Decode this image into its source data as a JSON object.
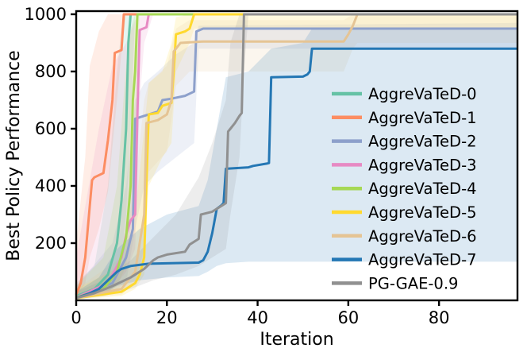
{
  "figure": {
    "background": "#ffffff",
    "frame_color": "#000000"
  },
  "chart_data": {
    "type": "line",
    "title": "",
    "xlabel": "Iteration",
    "ylabel": "Best Policy Performance",
    "xlim": [
      0,
      97.3
    ],
    "ylim": [
      0,
      1011
    ],
    "xticks": [
      0,
      20,
      40,
      60,
      80
    ],
    "yticks": [
      200,
      400,
      600,
      800,
      1000
    ],
    "grid": false,
    "legend_position": "inside-right",
    "band_opacity": 0.16,
    "series": [
      {
        "name": "AggreVaTeD-0",
        "color": "#66c2a5",
        "points": [
          [
            0,
            15
          ],
          [
            4,
            40
          ],
          [
            7,
            90
          ],
          [
            9,
            200
          ],
          [
            10,
            350
          ],
          [
            11,
            600
          ],
          [
            11.5,
            900
          ],
          [
            12,
            1000
          ],
          [
            97.3,
            1000
          ]
        ],
        "band": [
          [
            0,
            5,
            60
          ],
          [
            4,
            15,
            120
          ],
          [
            7,
            40,
            400
          ],
          [
            9,
            90,
            800
          ],
          [
            10,
            150,
            950
          ],
          [
            11,
            300,
            1000
          ],
          [
            12,
            600,
            1000
          ],
          [
            13,
            1000,
            1000
          ],
          [
            97.3,
            1000,
            1000
          ]
        ]
      },
      {
        "name": "AggreVaTeD-1",
        "color": "#fc8d62",
        "points": [
          [
            0,
            20
          ],
          [
            1,
            60
          ],
          [
            2,
            150
          ],
          [
            3,
            330
          ],
          [
            3.5,
            420
          ],
          [
            4,
            430
          ],
          [
            6,
            445
          ],
          [
            7,
            560
          ],
          [
            8,
            700
          ],
          [
            8.5,
            865
          ],
          [
            10,
            875
          ],
          [
            10.5,
            1000
          ],
          [
            97.3,
            1000
          ]
        ],
        "band": [
          [
            0,
            5,
            200
          ],
          [
            2,
            60,
            500
          ],
          [
            3,
            150,
            820
          ],
          [
            5,
            250,
            940
          ],
          [
            7,
            380,
            1000
          ],
          [
            9,
            700,
            1000
          ],
          [
            10,
            870,
            1000
          ],
          [
            11,
            1000,
            1000
          ],
          [
            97.3,
            1000,
            1000
          ]
        ]
      },
      {
        "name": "AggreVaTeD-2",
        "color": "#8da0cb",
        "points": [
          [
            0,
            10
          ],
          [
            8,
            60
          ],
          [
            11,
            150
          ],
          [
            12.5,
            250
          ],
          [
            13,
            635
          ],
          [
            15,
            645
          ],
          [
            18,
            660
          ],
          [
            19,
            700
          ],
          [
            21,
            705
          ],
          [
            24,
            715
          ],
          [
            26,
            730
          ],
          [
            26.5,
            940
          ],
          [
            28,
            950
          ],
          [
            97.3,
            950
          ]
        ],
        "band": [
          [
            0,
            5,
            50
          ],
          [
            8,
            30,
            200
          ],
          [
            11,
            60,
            400
          ],
          [
            13,
            250,
            700
          ],
          [
            15,
            400,
            760
          ],
          [
            18,
            450,
            800
          ],
          [
            22,
            500,
            860
          ],
          [
            26,
            550,
            900
          ],
          [
            27,
            880,
            960
          ],
          [
            97.3,
            880,
            970
          ]
        ]
      },
      {
        "name": "AggreVaTeD-3",
        "color": "#e78ac3",
        "points": [
          [
            0,
            10
          ],
          [
            7,
            60
          ],
          [
            10,
            150
          ],
          [
            11,
            230
          ],
          [
            12,
            280
          ],
          [
            13,
            300
          ],
          [
            13.5,
            650
          ],
          [
            14,
            945
          ],
          [
            15.5,
            955
          ],
          [
            16,
            1000
          ],
          [
            97.3,
            1000
          ]
        ],
        "band": [
          [
            0,
            5,
            150
          ],
          [
            5,
            20,
            600
          ],
          [
            8,
            40,
            820
          ],
          [
            11,
            100,
            900
          ],
          [
            13,
            180,
            980
          ],
          [
            14,
            700,
            1000
          ],
          [
            15,
            900,
            1000
          ],
          [
            16,
            950,
            1000
          ],
          [
            17,
            1000,
            1000
          ],
          [
            97.3,
            1000,
            1000
          ]
        ]
      },
      {
        "name": "AggreVaTeD-4",
        "color": "#a6d854",
        "points": [
          [
            0,
            10
          ],
          [
            6,
            40
          ],
          [
            9,
            100
          ],
          [
            11,
            220
          ],
          [
            12,
            400
          ],
          [
            12.5,
            700
          ],
          [
            13,
            800
          ],
          [
            13.5,
            1000
          ],
          [
            97.3,
            1000
          ]
        ],
        "band": [
          [
            0,
            5,
            50
          ],
          [
            6,
            20,
            150
          ],
          [
            9,
            50,
            400
          ],
          [
            11,
            120,
            820
          ],
          [
            12,
            250,
            950
          ],
          [
            13,
            500,
            1000
          ],
          [
            14,
            1000,
            1000
          ],
          [
            97.3,
            1000,
            1000
          ]
        ]
      },
      {
        "name": "AggreVaTeD-5",
        "color": "#ffd92f",
        "points": [
          [
            0,
            8
          ],
          [
            10,
            30
          ],
          [
            13,
            60
          ],
          [
            14,
            90
          ],
          [
            15,
            150
          ],
          [
            15.5,
            420
          ],
          [
            16,
            650
          ],
          [
            18,
            655
          ],
          [
            19,
            680
          ],
          [
            21,
            690
          ],
          [
            21.5,
            800
          ],
          [
            22,
            930
          ],
          [
            24,
            940
          ],
          [
            25,
            950
          ],
          [
            26,
            1000
          ],
          [
            97.3,
            1000
          ]
        ],
        "band": [
          [
            0,
            4,
            40
          ],
          [
            10,
            15,
            120
          ],
          [
            13,
            40,
            300
          ],
          [
            15,
            90,
            600
          ],
          [
            16,
            400,
            760
          ],
          [
            19,
            500,
            800
          ],
          [
            21,
            550,
            900
          ],
          [
            22,
            800,
            990
          ],
          [
            25,
            900,
            1000
          ],
          [
            26,
            950,
            1000
          ],
          [
            97.3,
            950,
            1000
          ]
        ]
      },
      {
        "name": "AggreVaTeD-6",
        "color": "#e5c494",
        "points": [
          [
            0,
            8
          ],
          [
            10,
            40
          ],
          [
            13,
            100
          ],
          [
            14,
            200
          ],
          [
            15,
            300
          ],
          [
            15.5,
            620
          ],
          [
            18,
            630
          ],
          [
            20,
            650
          ],
          [
            21,
            700
          ],
          [
            21.5,
            870
          ],
          [
            23,
            900
          ],
          [
            28,
            905
          ],
          [
            59,
            905
          ],
          [
            60,
            930
          ],
          [
            61,
            960
          ],
          [
            62,
            1000
          ],
          [
            97.3,
            1000
          ]
        ],
        "band": [
          [
            0,
            4,
            40
          ],
          [
            10,
            20,
            150
          ],
          [
            13,
            60,
            400
          ],
          [
            15,
            180,
            700
          ],
          [
            16,
            450,
            760
          ],
          [
            20,
            520,
            820
          ],
          [
            22,
            750,
            950
          ],
          [
            25,
            800,
            980
          ],
          [
            59,
            800,
            980
          ],
          [
            61,
            880,
            1000
          ],
          [
            62,
            900,
            1000
          ],
          [
            97.3,
            900,
            1000
          ]
        ]
      },
      {
        "name": "AggreVaTeD-7",
        "color": "#2477b4",
        "points": [
          [
            0,
            8
          ],
          [
            3,
            25
          ],
          [
            5,
            40
          ],
          [
            7,
            70
          ],
          [
            9,
            100
          ],
          [
            10,
            110
          ],
          [
            12,
            120
          ],
          [
            16,
            128
          ],
          [
            27,
            132
          ],
          [
            28,
            140
          ],
          [
            29,
            170
          ],
          [
            30,
            235
          ],
          [
            31,
            320
          ],
          [
            32,
            332
          ],
          [
            32.5,
            340
          ],
          [
            33,
            460
          ],
          [
            38,
            465
          ],
          [
            39,
            470
          ],
          [
            42,
            478
          ],
          [
            42.5,
            480
          ],
          [
            43,
            780
          ],
          [
            50,
            782
          ],
          [
            51,
            790
          ],
          [
            51.5,
            800
          ],
          [
            52,
            880
          ],
          [
            97.3,
            880
          ]
        ],
        "band": [
          [
            0,
            4,
            30
          ],
          [
            5,
            15,
            80
          ],
          [
            9,
            50,
            180
          ],
          [
            14,
            70,
            250
          ],
          [
            20,
            80,
            300
          ],
          [
            27,
            85,
            330
          ],
          [
            29,
            100,
            420
          ],
          [
            31,
            120,
            600
          ],
          [
            33,
            130,
            780
          ],
          [
            38,
            135,
            800
          ],
          [
            43,
            135,
            880
          ],
          [
            50,
            135,
            900
          ],
          [
            52,
            135,
            950
          ],
          [
            97.3,
            135,
            950
          ]
        ]
      },
      {
        "name": "PG-GAE-0.9",
        "color": "#909090",
        "points": [
          [
            0,
            8
          ],
          [
            4,
            25
          ],
          [
            8,
            50
          ],
          [
            12,
            80
          ],
          [
            15,
            110
          ],
          [
            17,
            140
          ],
          [
            18,
            150
          ],
          [
            20,
            160
          ],
          [
            24,
            170
          ],
          [
            25,
            195
          ],
          [
            27,
            215
          ],
          [
            27.5,
            300
          ],
          [
            30,
            310
          ],
          [
            32,
            330
          ],
          [
            33,
            340
          ],
          [
            33.5,
            590
          ],
          [
            34,
            600
          ],
          [
            35,
            620
          ],
          [
            36,
            645
          ],
          [
            36.5,
            655
          ],
          [
            37,
            1000
          ],
          [
            97.3,
            1000
          ]
        ],
        "band": [
          [
            0,
            4,
            30
          ],
          [
            6,
            15,
            70
          ],
          [
            12,
            40,
            140
          ],
          [
            17,
            70,
            220
          ],
          [
            22,
            90,
            300
          ],
          [
            27,
            120,
            430
          ],
          [
            30,
            150,
            550
          ],
          [
            33,
            180,
            700
          ],
          [
            34,
            300,
            900
          ],
          [
            36,
            500,
            1000
          ],
          [
            37,
            800,
            1000
          ],
          [
            38,
            1000,
            1000
          ],
          [
            97.3,
            1000,
            1000
          ]
        ]
      }
    ],
    "legend": {
      "entries": [
        "AggreVaTeD-0",
        "AggreVaTeD-1",
        "AggreVaTeD-2",
        "AggreVaTeD-3",
        "AggreVaTeD-4",
        "AggreVaTeD-5",
        "AggreVaTeD-6",
        "AggreVaTeD-7",
        "PG-GAE-0.9"
      ],
      "text_color": "#000000"
    }
  }
}
